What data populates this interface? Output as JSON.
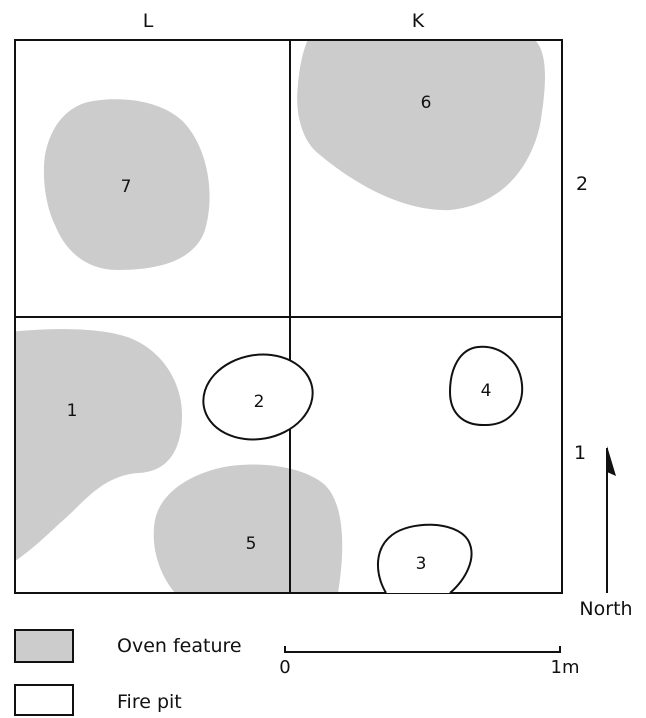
{
  "grid": {
    "columns": [
      "L",
      "K"
    ],
    "rows": [
      "2",
      "1"
    ]
  },
  "features": [
    {
      "id": "1",
      "type": "oven"
    },
    {
      "id": "2",
      "type": "fire_pit"
    },
    {
      "id": "3",
      "type": "fire_pit"
    },
    {
      "id": "4",
      "type": "fire_pit"
    },
    {
      "id": "5",
      "type": "oven"
    },
    {
      "id": "6",
      "type": "oven"
    },
    {
      "id": "7",
      "type": "oven"
    }
  ],
  "legend": {
    "oven": {
      "label": "Oven feature",
      "color": "#cccccc"
    },
    "fire_pit": {
      "label": "Fire pit",
      "color": "#ffffff"
    }
  },
  "north": {
    "label": "North"
  },
  "scale": {
    "start_label": "0",
    "end_label": "1m"
  },
  "colors": {
    "stroke": "#111111",
    "oven_fill": "#cccccc",
    "background": "#ffffff"
  }
}
